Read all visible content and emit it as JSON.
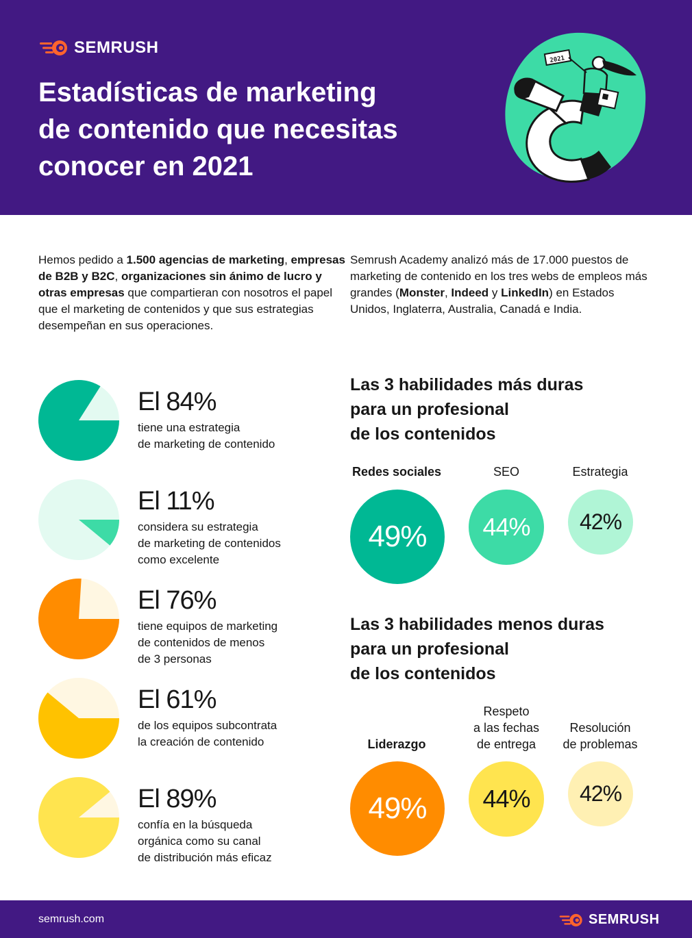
{
  "brand": {
    "name": "SEMRUSH",
    "accent_color": "#ff642d",
    "header_bg": "#421983"
  },
  "header": {
    "title": "Estadísticas de marketing\nde contenido que necesitas\nconocer en 2021",
    "illustration": "woman-riding-magnet-illustration",
    "illustration_sign": "2021"
  },
  "intro": {
    "left": {
      "t1": "Hemos pedido a ",
      "b1": "1.500 agencias de marketing",
      "t2": ", ",
      "b2": "empresas de B2B y B2C",
      "t3": ", ",
      "b3": "organizaciones sin ánimo de lucro y otras empresas",
      "t4": " que compartieran con nosotros el papel que el marketing de contenidos y que sus estrategias desempeñan en sus operaciones."
    },
    "right": {
      "t1": "Semrush Academy analizó más de 17.000 puestos de marketing de contenido en los tres webs de empleos más grandes (",
      "b1": "Monster",
      "t2": ", ",
      "b2": "Indeed",
      "t3": " y ",
      "b3": "LinkedIn",
      "t4": ") en Estados Unidos, Inglaterra, Australia, Canadá e India."
    }
  },
  "stats": [
    {
      "value": "El 84%",
      "percent": 84,
      "desc": "tiene una estrategia\nde marketing de contenido",
      "color": "#00b894",
      "bg": "#e3faf1"
    },
    {
      "value": "El 11%",
      "percent": 11,
      "desc": "considera su estrategia\nde marketing de contenidos\ncomo excelente",
      "color": "#3ddba6",
      "bg": "#e3faf1"
    },
    {
      "value": "El 76%",
      "percent": 76,
      "desc": "tiene equipos de marketing\nde contenidos de menos\nde 3 personas",
      "color": "#ff8c00",
      "bg": "#fff7e2"
    },
    {
      "value": "El 61%",
      "percent": 61,
      "desc": "de los equipos subcontrata\nla creación de contenido",
      "color": "#ffc200",
      "bg": "#fff7e2"
    },
    {
      "value": "El 89%",
      "percent": 89,
      "desc": "confía en la búsqueda\norgánica como su canal\nde distribución más eficaz",
      "color": "#ffe44f",
      "bg": "#fff7e2"
    }
  ],
  "hard_skills": {
    "title": "Las 3 habilidades más duras\npara un profesional\nde los contenidos",
    "items": [
      {
        "label": "Redes sociales",
        "value": "49%",
        "color": "#00b894",
        "text_color": "#ffffff"
      },
      {
        "label": "SEO",
        "value": "44%",
        "color": "#3ddba6",
        "text_color": "#ffffff"
      },
      {
        "label": "Estrategia",
        "value": "42%",
        "color": "#b0f5d6",
        "text_color": "#171717"
      }
    ]
  },
  "soft_skills": {
    "title": "Las 3 habilidades menos duras\npara un profesional\nde los contenidos",
    "items": [
      {
        "label": "Liderazgo",
        "value": "49%",
        "color": "#ff8c00",
        "text_color": "#ffffff"
      },
      {
        "label": "Respeto\na las fechas\nde entrega",
        "value": "44%",
        "color": "#ffe44f",
        "text_color": "#171717"
      },
      {
        "label": "Resolución\nde problemas",
        "value": "42%",
        "color": "#fff0b3",
        "text_color": "#171717"
      }
    ]
  },
  "footer": {
    "site": "semrush.com",
    "brand": "SEMRUSH"
  }
}
